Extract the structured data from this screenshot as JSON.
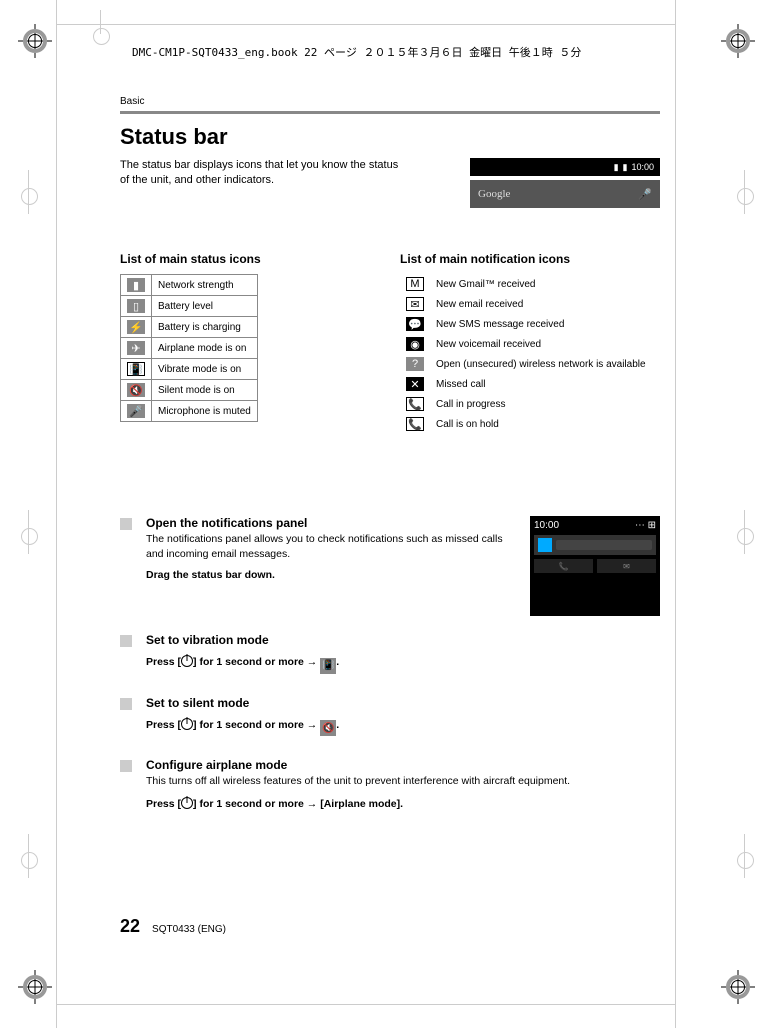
{
  "file_header": "DMC-CM1P-SQT0433_eng.book  22 ページ  ２０１５年３月６日  金曜日  午後１時   ５分",
  "section_label": "Basic",
  "title": "Status bar",
  "intro": "The status bar displays icons that let you know the status of the unit, and other indicators.",
  "phone_preview": {
    "time": "10:00",
    "search_label": "Google",
    "mic_glyph": "🎤"
  },
  "status_icons_heading": "List of main status icons",
  "status_icons": [
    {
      "glyph": "▮",
      "label": "Network strength",
      "style": "gray"
    },
    {
      "glyph": "▯",
      "label": "Battery level",
      "style": "gray"
    },
    {
      "glyph": "⚡",
      "label": "Battery is charging",
      "style": "gray"
    },
    {
      "glyph": "✈",
      "label": "Airplane mode is on",
      "style": "gray"
    },
    {
      "glyph": "📳",
      "label": "Vibrate mode is on",
      "style": "outline"
    },
    {
      "glyph": "🔇",
      "label": "Silent mode is on",
      "style": "gray"
    },
    {
      "glyph": "🎤",
      "label": "Microphone is muted",
      "style": "gray"
    }
  ],
  "notif_icons_heading": "List of main notification icons",
  "notif_icons": [
    {
      "glyph": "M",
      "label": "New Gmail™ received",
      "style": "outline"
    },
    {
      "glyph": "✉",
      "label": "New email received",
      "style": "outline"
    },
    {
      "glyph": "💬",
      "label": "New SMS message received",
      "style": "black"
    },
    {
      "glyph": "◉",
      "label": "New voicemail received",
      "style": "black"
    },
    {
      "glyph": "?",
      "label": "Open (unsecured) wireless network is available",
      "style": "gray"
    },
    {
      "glyph": "✕",
      "label": "Missed call",
      "style": "black"
    },
    {
      "glyph": "📞",
      "label": "Call in progress",
      "style": "outline"
    },
    {
      "glyph": "📞",
      "label": "Call is on hold",
      "style": "outline"
    }
  ],
  "subs": {
    "open_notif": {
      "title": "Open the notifications panel",
      "body": "The notifications panel allows you to check notifications such as missed calls and incoming email messages.",
      "action": "Drag the status bar down."
    },
    "vibration": {
      "title": "Set to vibration mode",
      "prefix": "Press [",
      "mid": "] for 1 second or more → ",
      "suffix": "."
    },
    "silent": {
      "title": "Set to silent mode",
      "prefix": "Press [",
      "mid": "] for 1 second or more → ",
      "suffix": "."
    },
    "airplane": {
      "title": "Configure airplane mode",
      "body": "This turns off all wireless features of the unit to prevent interference with aircraft equipment.",
      "prefix": "Press [",
      "mid": "] for 1 second or more → [Airplane mode]."
    }
  },
  "notif_preview": {
    "time": "10:00",
    "phone_glyph": "📞",
    "msg_glyph": "✉"
  },
  "footer": {
    "page_number": "22",
    "doc_id": "SQT0433 (ENG)"
  }
}
